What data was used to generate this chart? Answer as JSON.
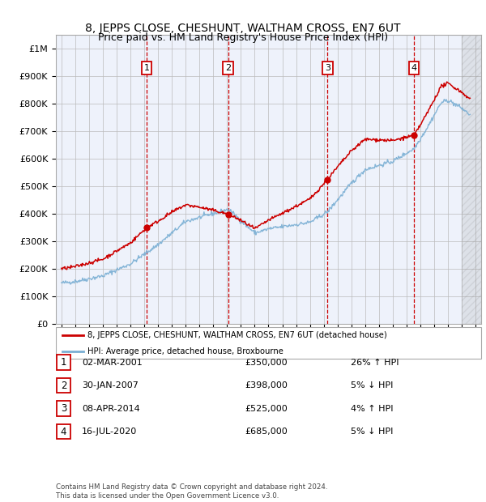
{
  "title": "8, JEPPS CLOSE, CHESHUNT, WALTHAM CROSS, EN7 6UT",
  "subtitle": "Price paid vs. HM Land Registry's House Price Index (HPI)",
  "ylim": [
    0,
    1050000
  ],
  "yticks": [
    0,
    100000,
    200000,
    300000,
    400000,
    500000,
    600000,
    700000,
    800000,
    900000,
    1000000
  ],
  "ytick_labels": [
    "£0",
    "£100K",
    "£200K",
    "£300K",
    "£400K",
    "£500K",
    "£600K",
    "£700K",
    "£800K",
    "£900K",
    "£1M"
  ],
  "sale_dates": [
    2001.17,
    2007.08,
    2014.27,
    2020.54
  ],
  "sale_prices": [
    350000,
    398000,
    525000,
    685000
  ],
  "sale_labels": [
    "1",
    "2",
    "3",
    "4"
  ],
  "vline_color": "#cc0000",
  "hpi_color": "#7aafd4",
  "price_color": "#cc0000",
  "background_color": "#eef2fb",
  "grid_color": "#bbbbbb",
  "legend_entries": [
    "8, JEPPS CLOSE, CHESHUNT, WALTHAM CROSS, EN7 6UT (detached house)",
    "HPI: Average price, detached house, Broxbourne"
  ],
  "table_data": [
    [
      "1",
      "02-MAR-2001",
      "£350,000",
      "26% ↑ HPI"
    ],
    [
      "2",
      "30-JAN-2007",
      "£398,000",
      "5% ↓ HPI"
    ],
    [
      "3",
      "08-APR-2014",
      "£525,000",
      "4% ↑ HPI"
    ],
    [
      "4",
      "16-JUL-2020",
      "£685,000",
      "5% ↓ HPI"
    ]
  ],
  "footnote": "Contains HM Land Registry data © Crown copyright and database right 2024.\nThis data is licensed under the Open Government Licence v3.0.",
  "xlim_start": 1994.6,
  "xlim_end": 2025.4,
  "hatch_start": 2024.0
}
